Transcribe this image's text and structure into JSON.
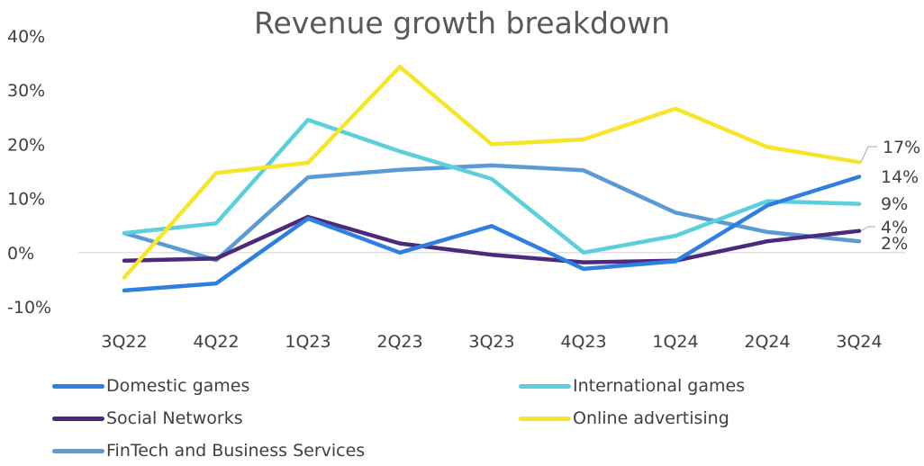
{
  "chart_data": {
    "type": "line",
    "title": "Revenue growth breakdown",
    "categories": [
      "3Q22",
      "4Q22",
      "1Q23",
      "2Q23",
      "3Q23",
      "4Q23",
      "1Q24",
      "2Q24",
      "3Q24"
    ],
    "y_ticks": [
      "-10%",
      "0%",
      "10%",
      "20%",
      "30%",
      "40%"
    ],
    "ylim": [
      -10,
      40
    ],
    "grid": "zero-line only",
    "legend_position": "bottom",
    "series": [
      {
        "name": "Domestic games",
        "color": "#2f7fe0",
        "values": [
          -7,
          -5.7,
          6.3,
          0,
          4.9,
          -3,
          -1.6,
          8.7,
          14
        ],
        "end_label": "14%"
      },
      {
        "name": "International games",
        "color": "#5ccfdc",
        "values": [
          3.6,
          5.4,
          24.5,
          18.7,
          13.6,
          0,
          3.1,
          9.5,
          9
        ],
        "end_label": "9%"
      },
      {
        "name": "Social Networks",
        "color": "#4b2a7b",
        "values": [
          -1.5,
          -1.1,
          6.6,
          1.7,
          -0.4,
          -1.8,
          -1.5,
          2.1,
          4
        ],
        "end_label": "4%"
      },
      {
        "name": "Online advertising",
        "color": "#f7e52a",
        "values": [
          -4.6,
          14.7,
          16.6,
          34.3,
          20,
          20.9,
          26.6,
          19.5,
          16.7
        ],
        "end_label": "17%"
      },
      {
        "name": "FinTech and Business Services",
        "color": "#5b9bd5",
        "values": [
          3.6,
          -1.4,
          13.9,
          15.3,
          16.1,
          15.2,
          7.4,
          3.8,
          2.1
        ],
        "end_label": "2%"
      }
    ]
  }
}
